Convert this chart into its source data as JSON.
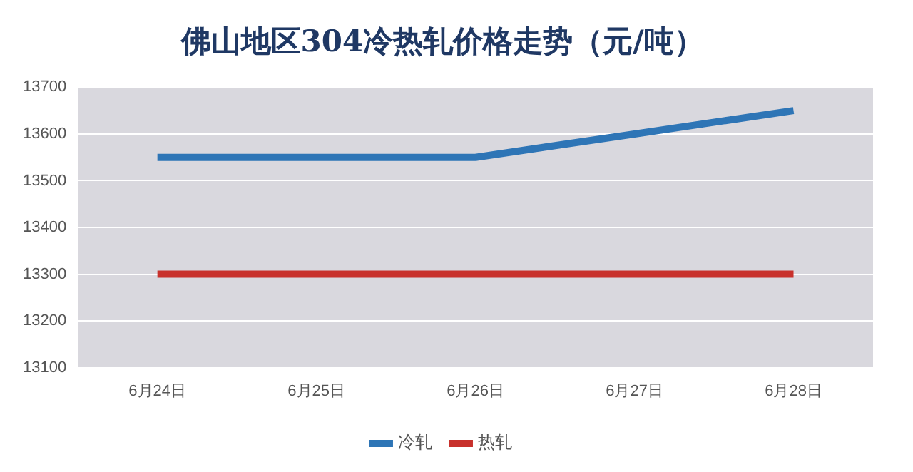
{
  "chart_data": {
    "type": "line",
    "title": "佛山地区304冷热轧价格走势（元/吨）",
    "categories": [
      "6月24日",
      "6月25日",
      "6月26日",
      "6月27日",
      "6月28日"
    ],
    "series": [
      {
        "name": "冷轧",
        "color": "#2e75b6",
        "values": [
          13550,
          13550,
          13550,
          13600,
          13650
        ]
      },
      {
        "name": "热轧",
        "color": "#c8312c",
        "values": [
          13300,
          13300,
          13300,
          13300,
          13300
        ]
      }
    ],
    "ylim": [
      13100,
      13700
    ],
    "yticks": [
      13100,
      13200,
      13300,
      13400,
      13500,
      13600,
      13700
    ],
    "grid": "y",
    "legend": "bottom",
    "marker": "none",
    "line_style": "solid"
  }
}
